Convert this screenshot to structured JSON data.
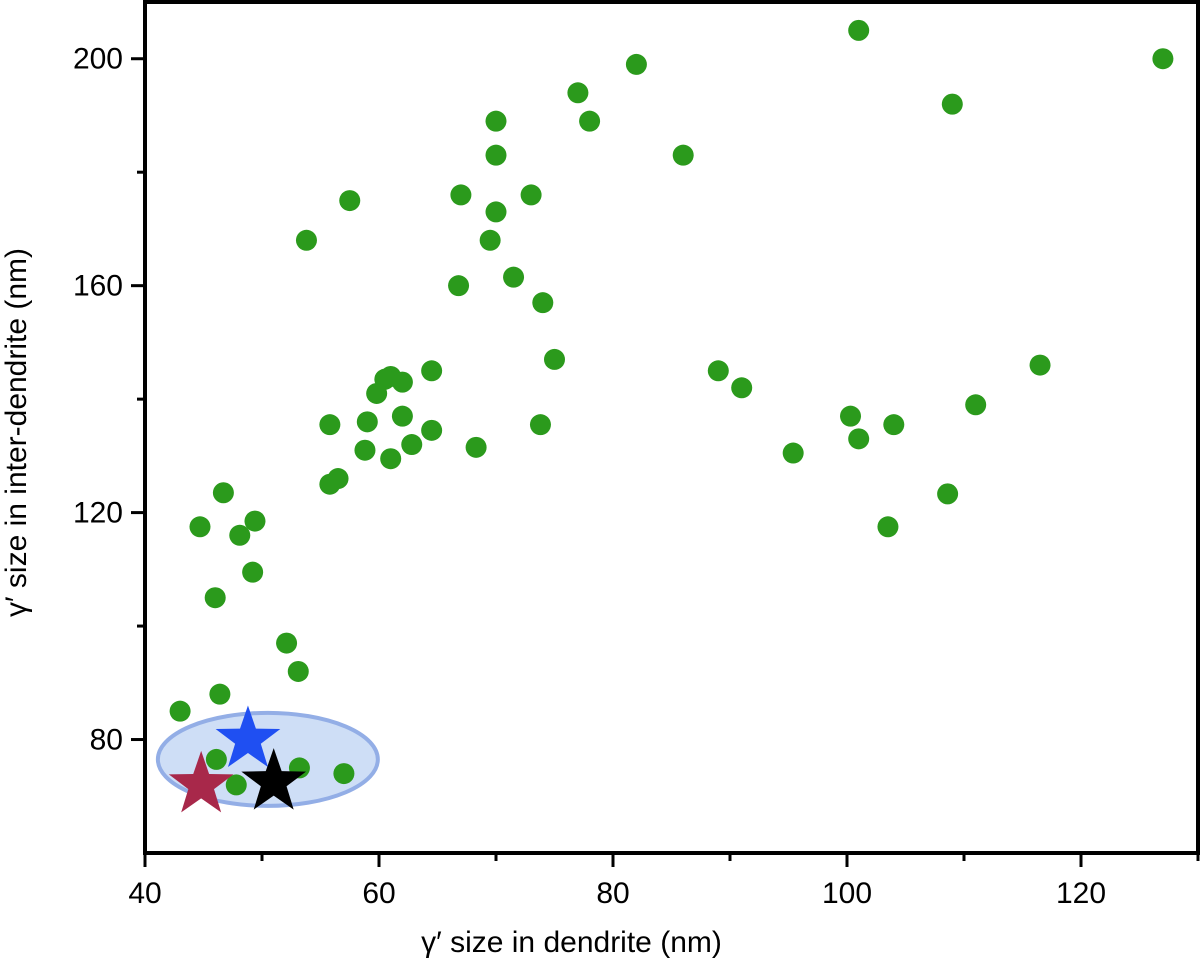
{
  "chart_data": {
    "type": "scatter",
    "title": "",
    "xlabel": "γ′ size in dendrite (nm)",
    "ylabel": "γ′ size in inter-dendrite (nm)",
    "xlim": [
      40,
      130
    ],
    "ylim": [
      60,
      210
    ],
    "x_ticks": [
      40,
      60,
      80,
      100,
      120
    ],
    "y_ticks": [
      80,
      120,
      160,
      200
    ],
    "x_tick_labels": [
      "40",
      "60",
      "80",
      "100",
      "120"
    ],
    "y_tick_labels": [
      "80",
      "120",
      "160",
      "200"
    ],
    "grid": false,
    "legend": "none",
    "colors": {
      "points": "#2b9a1c",
      "ellipse_fill": "#c5d8f5",
      "ellipse_stroke": "#93aee6",
      "star_blue": "#1f4ff2",
      "star_red": "#a8284a",
      "star_black": "#000000"
    },
    "series": [
      {
        "marker": "circle",
        "color": "#2b9a1c",
        "points": [
          [
            101,
            205
          ],
          [
            82,
            199
          ],
          [
            127,
            200
          ],
          [
            77,
            194
          ],
          [
            109,
            192
          ],
          [
            78,
            189
          ],
          [
            70,
            189
          ],
          [
            70,
            183
          ],
          [
            86,
            183
          ],
          [
            67,
            176
          ],
          [
            73,
            176
          ],
          [
            57.5,
            175
          ],
          [
            70,
            173
          ],
          [
            69.5,
            168
          ],
          [
            53.8,
            168
          ],
          [
            71.5,
            161.5
          ],
          [
            66.8,
            160
          ],
          [
            74,
            157
          ],
          [
            75,
            147
          ],
          [
            116.5,
            146
          ],
          [
            89,
            145
          ],
          [
            64.5,
            145
          ],
          [
            61,
            144
          ],
          [
            60.5,
            143.5
          ],
          [
            62,
            143
          ],
          [
            91,
            142
          ],
          [
            59.8,
            141
          ],
          [
            111,
            139
          ],
          [
            100.3,
            137
          ],
          [
            62,
            137
          ],
          [
            59,
            136
          ],
          [
            55.8,
            135.5
          ],
          [
            73.8,
            135.5
          ],
          [
            104,
            135.5
          ],
          [
            64.5,
            134.5
          ],
          [
            101,
            133
          ],
          [
            62.8,
            132
          ],
          [
            68.3,
            131.5
          ],
          [
            58.8,
            131
          ],
          [
            95.4,
            130.5
          ],
          [
            61,
            129.5
          ],
          [
            56.5,
            126
          ],
          [
            55.8,
            125
          ],
          [
            46.7,
            123.5
          ],
          [
            108.6,
            123.3
          ],
          [
            49.4,
            118.5
          ],
          [
            44.7,
            117.5
          ],
          [
            103.5,
            117.5
          ],
          [
            48.1,
            116
          ],
          [
            49.2,
            109.5
          ],
          [
            46,
            105
          ],
          [
            52.1,
            97
          ],
          [
            53.1,
            92
          ],
          [
            46.4,
            88
          ],
          [
            43,
            85
          ],
          [
            46.1,
            76.5
          ],
          [
            53.2,
            75
          ],
          [
            57,
            74
          ],
          [
            47.8,
            72
          ]
        ]
      },
      {
        "marker": "star",
        "color": "#1f4ff2",
        "points": [
          [
            48.8,
            80
          ]
        ]
      },
      {
        "marker": "star",
        "color": "#a8284a",
        "points": [
          [
            44.8,
            72
          ]
        ]
      },
      {
        "marker": "star",
        "color": "#000000",
        "points": [
          [
            51,
            72.5
          ]
        ]
      }
    ],
    "annotations": [
      {
        "shape": "ellipse",
        "center": [
          50.5,
          76.5
        ],
        "radius": [
          9.4,
          8.2
        ]
      }
    ]
  }
}
